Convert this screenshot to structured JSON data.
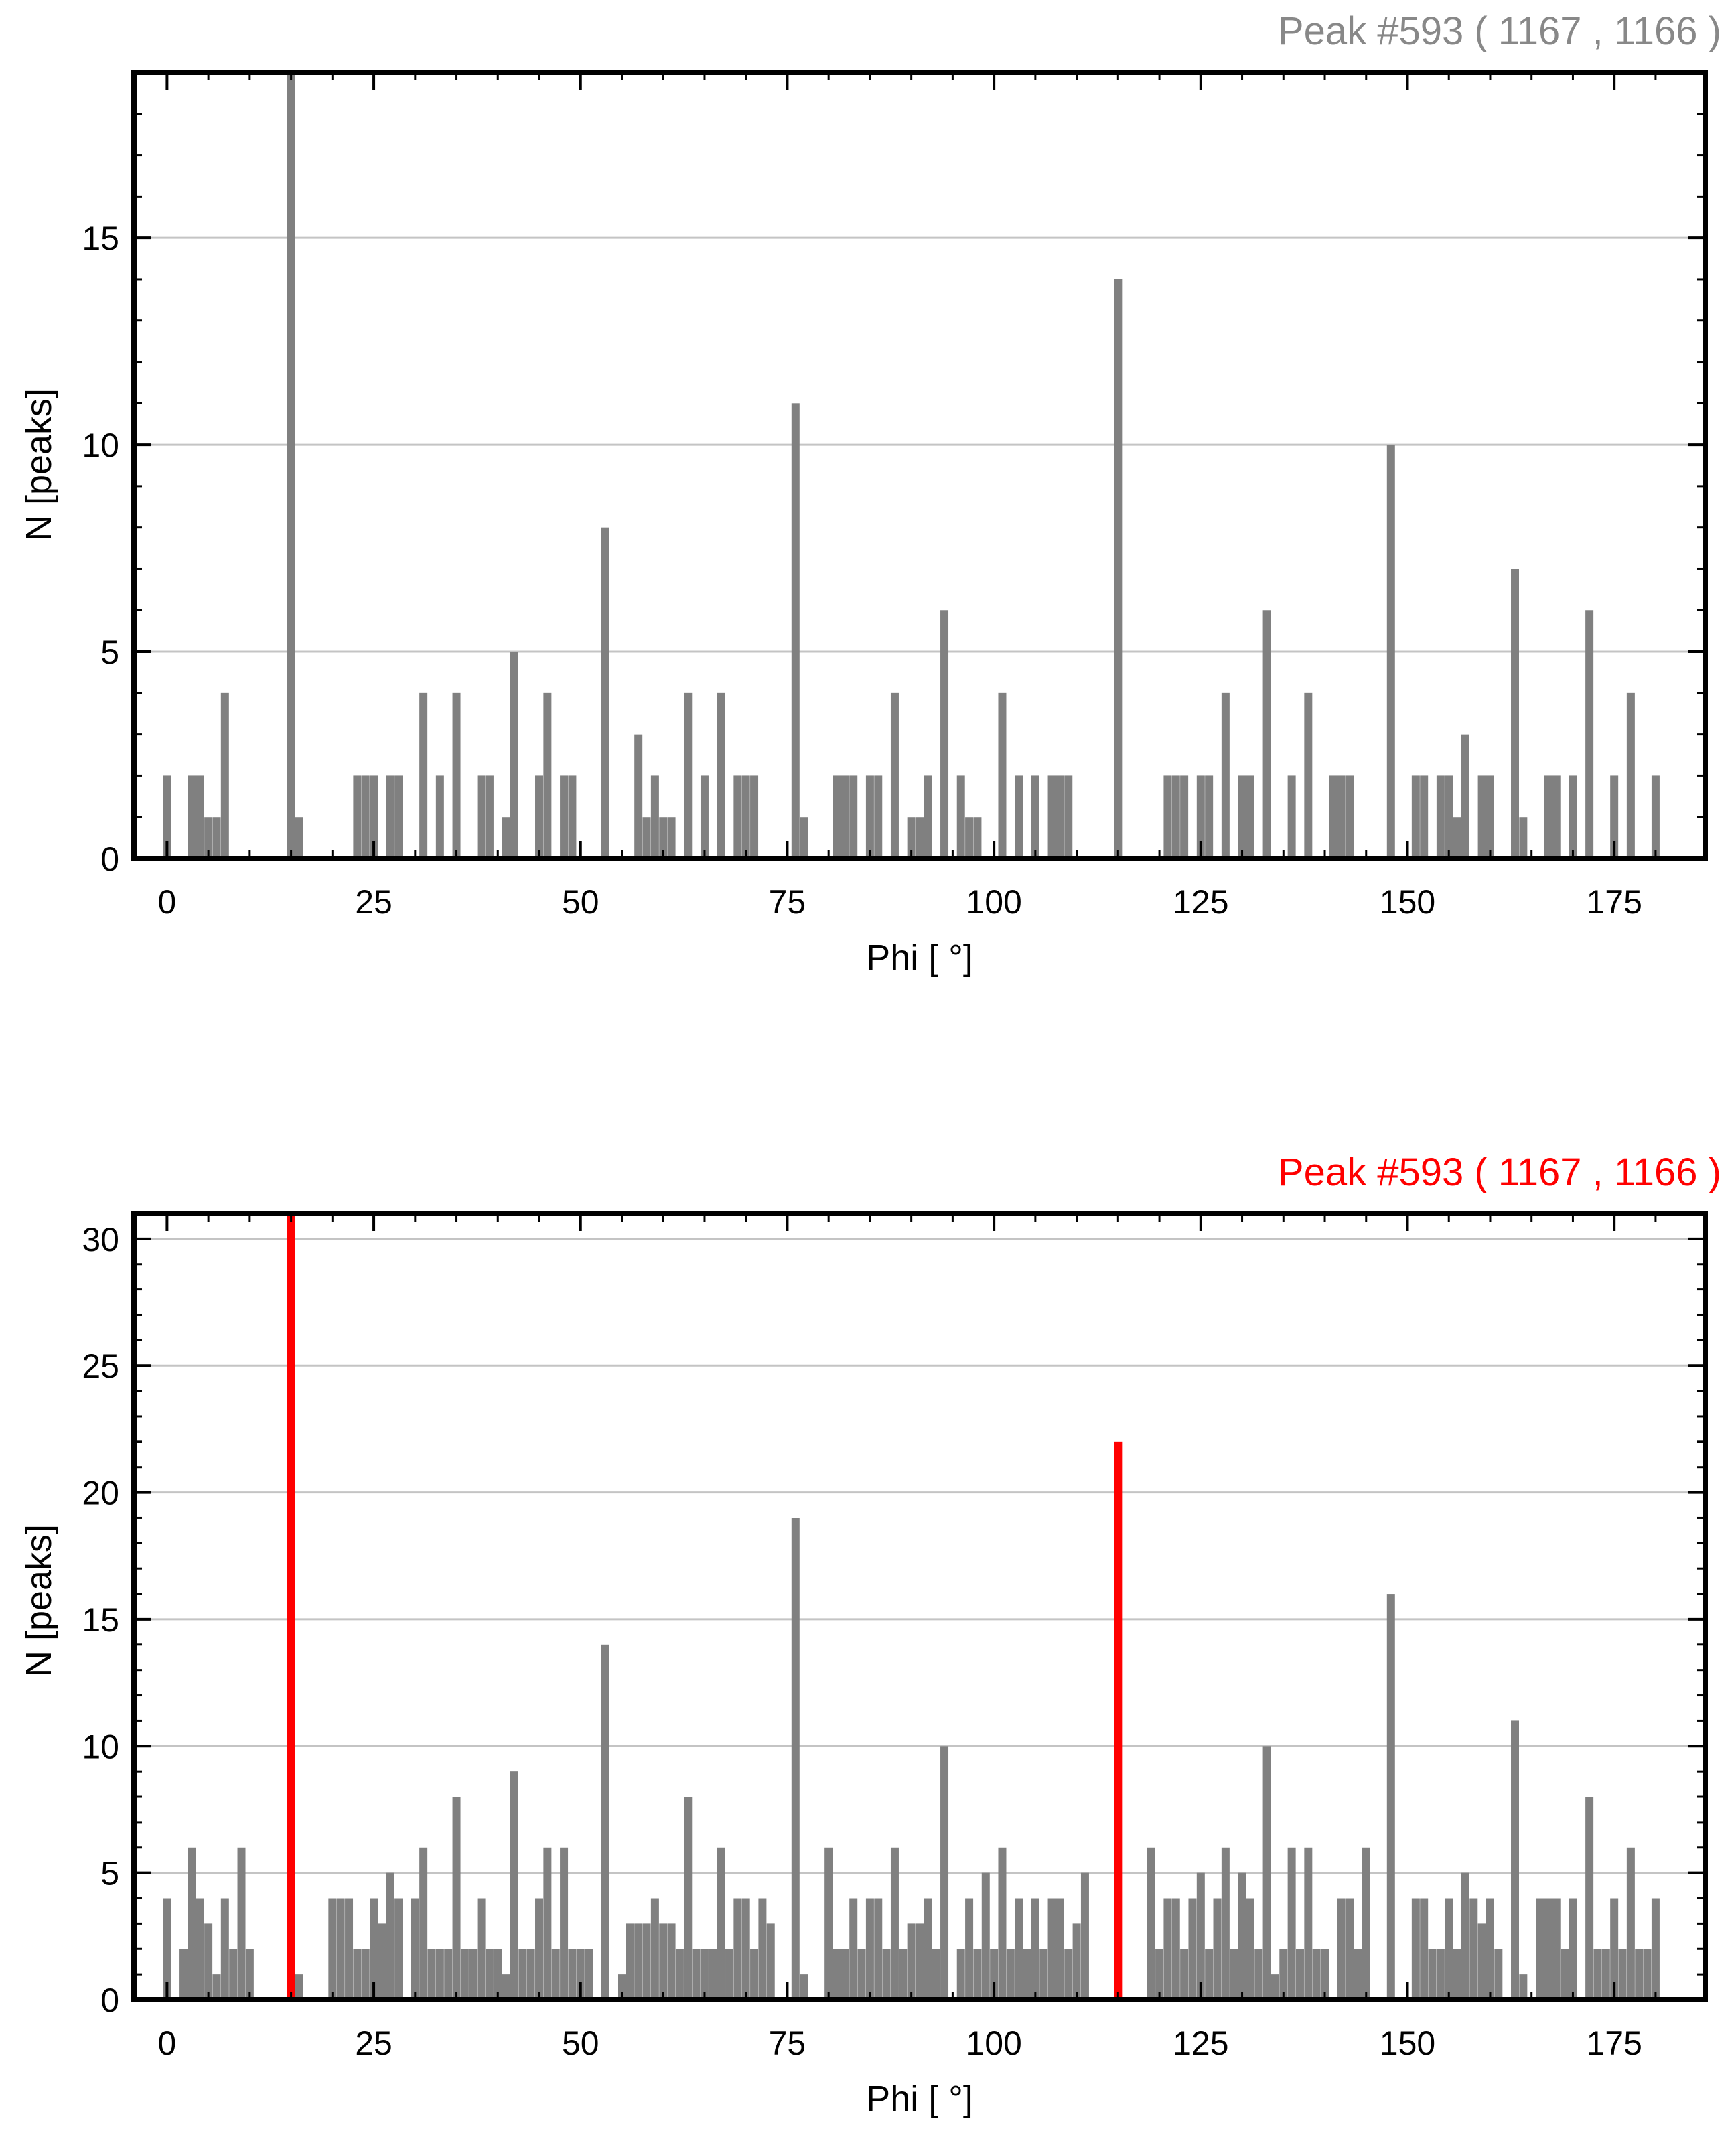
{
  "chart_data": [
    {
      "type": "bar",
      "title": "Peak #593  ( 1167 , 1166 )",
      "title_color": "#888888",
      "xlabel": "Phi [ °]",
      "ylabel": "N [peaks]",
      "xlim": [
        -4,
        186
      ],
      "ylim": [
        0,
        19
      ],
      "xticks": [
        0,
        25,
        50,
        75,
        100,
        125,
        150,
        175
      ],
      "yticks": [
        0,
        5,
        10,
        15
      ],
      "grid": true,
      "bar_color": "#808080",
      "highlight_color": "#ff0000",
      "highlight_x": [],
      "x": [
        0,
        1,
        2,
        3,
        4,
        5,
        6,
        7,
        8,
        9,
        10,
        11,
        12,
        13,
        14,
        15,
        16,
        17,
        18,
        19,
        20,
        21,
        22,
        23,
        24,
        25,
        26,
        27,
        28,
        29,
        30,
        31,
        32,
        33,
        34,
        35,
        36,
        37,
        38,
        39,
        40,
        41,
        42,
        43,
        44,
        45,
        46,
        47,
        48,
        49,
        50,
        51,
        52,
        53,
        54,
        55,
        56,
        57,
        58,
        59,
        60,
        61,
        62,
        63,
        64,
        65,
        66,
        67,
        68,
        69,
        70,
        71,
        72,
        73,
        74,
        75,
        76,
        77,
        78,
        79,
        80,
        81,
        82,
        83,
        84,
        85,
        86,
        87,
        88,
        89,
        90,
        91,
        92,
        93,
        94,
        95,
        96,
        97,
        98,
        99,
        100,
        101,
        102,
        103,
        104,
        105,
        106,
        107,
        108,
        109,
        110,
        111,
        112,
        113,
        114,
        115,
        116,
        117,
        118,
        119,
        120,
        121,
        122,
        123,
        124,
        125,
        126,
        127,
        128,
        129,
        130,
        131,
        132,
        133,
        134,
        135,
        136,
        137,
        138,
        139,
        140,
        141,
        142,
        143,
        144,
        145,
        146,
        147,
        148,
        149,
        150,
        151,
        152,
        153,
        154,
        155,
        156,
        157,
        158,
        159,
        160,
        161,
        162,
        163,
        164,
        165,
        166,
        167,
        168,
        169,
        170,
        171,
        172,
        173,
        174,
        175,
        176,
        177,
        178,
        179,
        180
      ],
      "values": [
        2,
        0,
        0,
        2,
        2,
        1,
        1,
        4,
        0,
        0,
        0,
        0,
        0,
        0,
        0,
        19,
        1,
        0,
        0,
        0,
        0,
        0,
        0,
        2,
        2,
        2,
        0,
        2,
        2,
        0,
        0,
        4,
        0,
        2,
        0,
        4,
        0,
        0,
        2,
        2,
        0,
        1,
        5,
        0,
        0,
        2,
        4,
        0,
        2,
        2,
        0,
        0,
        0,
        8,
        0,
        0,
        0,
        3,
        1,
        2,
        1,
        1,
        0,
        4,
        0,
        2,
        0,
        4,
        0,
        2,
        2,
        2,
        0,
        0,
        0,
        0,
        11,
        1,
        0,
        0,
        0,
        2,
        2,
        2,
        0,
        2,
        2,
        0,
        4,
        0,
        1,
        1,
        2,
        0,
        6,
        0,
        2,
        1,
        1,
        0,
        0,
        4,
        0,
        2,
        0,
        2,
        0,
        2,
        2,
        2,
        0,
        0,
        0,
        0,
        0,
        14,
        0,
        0,
        0,
        0,
        0,
        2,
        2,
        2,
        0,
        2,
        2,
        0,
        4,
        0,
        2,
        2,
        0,
        6,
        0,
        0,
        2,
        0,
        4,
        0,
        0,
        2,
        2,
        2,
        0,
        0,
        0,
        0,
        10,
        0,
        0,
        2,
        2,
        0,
        2,
        2,
        1,
        3,
        0,
        2,
        2,
        0,
        0,
        7,
        1,
        0,
        0,
        2,
        2,
        0,
        2,
        0,
        6,
        0,
        0,
        2,
        0,
        4,
        0,
        0,
        2
      ]
    },
    {
      "type": "bar",
      "title": "Peak #593  ( 1167 , 1166 )",
      "title_color": "#ff0000",
      "xlabel": "Phi [ °]",
      "ylabel": "N [peaks]",
      "xlim": [
        -4,
        186
      ],
      "ylim": [
        0,
        31
      ],
      "xticks": [
        0,
        25,
        50,
        75,
        100,
        125,
        150,
        175
      ],
      "yticks": [
        0,
        5,
        10,
        15,
        20,
        25,
        30
      ],
      "grid": true,
      "bar_color": "#808080",
      "highlight_color": "#ff0000",
      "highlight_x": [
        15,
        115
      ],
      "x": [
        0,
        1,
        2,
        3,
        4,
        5,
        6,
        7,
        8,
        9,
        10,
        11,
        12,
        13,
        14,
        15,
        16,
        17,
        18,
        19,
        20,
        21,
        22,
        23,
        24,
        25,
        26,
        27,
        28,
        29,
        30,
        31,
        32,
        33,
        34,
        35,
        36,
        37,
        38,
        39,
        40,
        41,
        42,
        43,
        44,
        45,
        46,
        47,
        48,
        49,
        50,
        51,
        52,
        53,
        54,
        55,
        56,
        57,
        58,
        59,
        60,
        61,
        62,
        63,
        64,
        65,
        66,
        67,
        68,
        69,
        70,
        71,
        72,
        73,
        74,
        75,
        76,
        77,
        78,
        79,
        80,
        81,
        82,
        83,
        84,
        85,
        86,
        87,
        88,
        89,
        90,
        91,
        92,
        93,
        94,
        95,
        96,
        97,
        98,
        99,
        100,
        101,
        102,
        103,
        104,
        105,
        106,
        107,
        108,
        109,
        110,
        111,
        112,
        113,
        114,
        115,
        116,
        117,
        118,
        119,
        120,
        121,
        122,
        123,
        124,
        125,
        126,
        127,
        128,
        129,
        130,
        131,
        132,
        133,
        134,
        135,
        136,
        137,
        138,
        139,
        140,
        141,
        142,
        143,
        144,
        145,
        146,
        147,
        148,
        149,
        150,
        151,
        152,
        153,
        154,
        155,
        156,
        157,
        158,
        159,
        160,
        161,
        162,
        163,
        164,
        165,
        166,
        167,
        168,
        169,
        170,
        171,
        172,
        173,
        174,
        175,
        176,
        177,
        178,
        179,
        180
      ],
      "values": [
        4,
        0,
        2,
        6,
        4,
        3,
        1,
        4,
        2,
        6,
        2,
        0,
        0,
        0,
        0,
        31,
        1,
        0,
        0,
        0,
        4,
        4,
        4,
        2,
        2,
        4,
        3,
        5,
        4,
        0,
        4,
        6,
        2,
        2,
        2,
        8,
        2,
        2,
        4,
        2,
        2,
        1,
        9,
        2,
        2,
        4,
        6,
        2,
        6,
        2,
        2,
        2,
        0,
        14,
        0,
        1,
        3,
        3,
        3,
        4,
        3,
        3,
        2,
        8,
        2,
        2,
        2,
        6,
        2,
        4,
        4,
        2,
        4,
        3,
        0,
        0,
        19,
        1,
        0,
        0,
        6,
        2,
        2,
        4,
        2,
        4,
        4,
        2,
        6,
        2,
        3,
        3,
        4,
        2,
        10,
        0,
        2,
        4,
        2,
        5,
        2,
        6,
        2,
        4,
        2,
        4,
        2,
        4,
        4,
        2,
        3,
        5,
        0,
        0,
        0,
        22,
        0,
        0,
        0,
        6,
        2,
        4,
        4,
        2,
        4,
        5,
        2,
        4,
        6,
        2,
        5,
        4,
        2,
        10,
        1,
        2,
        6,
        2,
        6,
        2,
        2,
        0,
        4,
        4,
        2,
        6,
        0,
        0,
        16,
        0,
        0,
        4,
        4,
        2,
        2,
        4,
        2,
        5,
        4,
        3,
        4,
        2,
        0,
        11,
        1,
        0,
        4,
        4,
        4,
        2,
        4,
        0,
        8,
        2,
        2,
        4,
        2,
        6,
        2,
        2,
        4
      ]
    }
  ]
}
